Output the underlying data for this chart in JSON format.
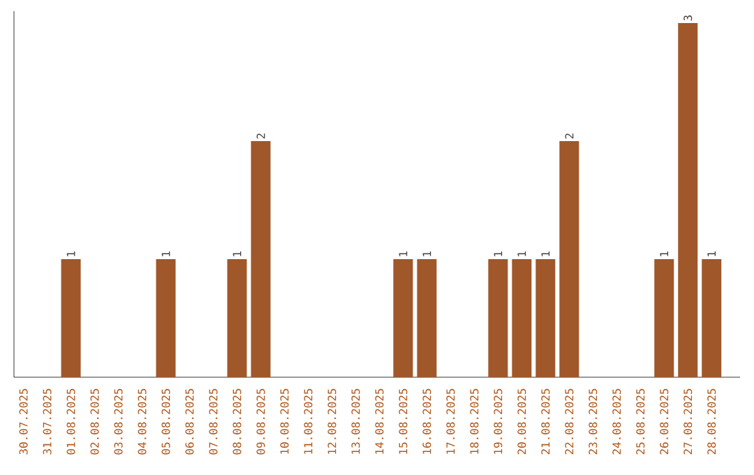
{
  "chart_data": {
    "type": "bar",
    "categories": [
      "30.07.2025",
      "31.07.2025",
      "01.08.2025",
      "02.08.2025",
      "03.08.2025",
      "04.08.2025",
      "05.08.2025",
      "06.08.2025",
      "07.08.2025",
      "08.08.2025",
      "09.08.2025",
      "10.08.2025",
      "11.08.2025",
      "12.08.2025",
      "13.08.2025",
      "14.08.2025",
      "15.08.2025",
      "16.08.2025",
      "17.08.2025",
      "18.08.2025",
      "19.08.2025",
      "20.08.2025",
      "21.08.2025",
      "22.08.2025",
      "23.08.2025",
      "24.08.2025",
      "25.08.2025",
      "26.08.2025",
      "27.08.2025",
      "28.08.2025"
    ],
    "values": [
      0,
      0,
      1,
      0,
      0,
      0,
      1,
      0,
      0,
      1,
      2,
      0,
      0,
      0,
      0,
      0,
      1,
      1,
      0,
      0,
      1,
      1,
      1,
      2,
      0,
      0,
      0,
      1,
      3,
      1
    ],
    "value_labels": [
      null,
      null,
      "1",
      null,
      null,
      null,
      "1",
      null,
      null,
      "1",
      "2",
      null,
      null,
      null,
      null,
      null,
      "1",
      "1",
      null,
      null,
      "1",
      "1",
      "1",
      "2",
      null,
      null,
      null,
      "1",
      "3",
      "1"
    ],
    "color": "#a0572a",
    "ylim": [
      0,
      3.1
    ],
    "tick_labels": "x"
  }
}
